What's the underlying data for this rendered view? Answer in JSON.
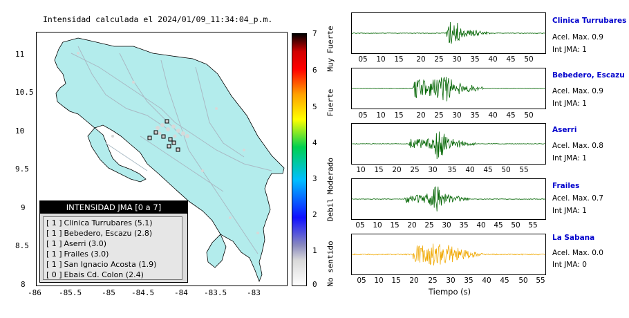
{
  "map": {
    "title": "Intensidad calculada el 2024/01/09_11:34:04_p.m.",
    "x_ticks": [
      "-86",
      "-85.5",
      "-85",
      "-84.5",
      "-84",
      "-83.5",
      "-83"
    ],
    "y_ticks": [
      "11",
      "10.5",
      "10",
      "9.5",
      "9",
      "8.5",
      "8"
    ],
    "land_color": "#b3ecec",
    "legend": {
      "title": "INTENSIDAD JMA [0 a 7]",
      "items": [
        {
          "badge": "[ 1 ]",
          "label": "Clinica Turrubares (5.1)"
        },
        {
          "badge": "[ 1 ]",
          "label": "Bebedero, Escazu (2.8)"
        },
        {
          "badge": "[ 1 ]",
          "label": "Aserri (3.0)"
        },
        {
          "badge": "[ 1 ]",
          "label": "Frailes (3.0)"
        },
        {
          "badge": "[ 1 ]",
          "label": "San Ignacio Acosta (1.9)"
        },
        {
          "badge": "[ 0 ]",
          "label": "Ebais Cd. Colon (2.4)"
        }
      ]
    }
  },
  "colorbar": {
    "numbers": [
      "7",
      "6",
      "5",
      "4",
      "3",
      "2",
      "1",
      "0"
    ],
    "words": [
      "Muy Fuerte",
      "Fuerte",
      "Moderado",
      "Debil",
      "No sentido"
    ]
  },
  "waveforms": {
    "x_label": "Tiempo (s)",
    "stations": [
      {
        "name": "Clinica Turrubares",
        "accel": "Acel. Max. 0.9",
        "jma": "Int JMA: 1",
        "color": "#006400",
        "ticks": [
          "05",
          "10",
          "15",
          "20",
          "25",
          "30",
          "35",
          "40",
          "45",
          "50"
        ]
      },
      {
        "name": "Bebedero, Escazu",
        "accel": "Acel. Max. 0.9",
        "jma": "Int JMA: 1",
        "color": "#006400",
        "ticks": [
          "05",
          "10",
          "15",
          "20",
          "25",
          "30",
          "35",
          "40",
          "45",
          "50"
        ]
      },
      {
        "name": "Aserri",
        "accel": "Acel. Max. 0.8",
        "jma": "Int JMA: 1",
        "color": "#006400",
        "ticks": [
          "10",
          "15",
          "20",
          "25",
          "30",
          "35",
          "40",
          "45",
          "50",
          "55"
        ]
      },
      {
        "name": "Frailes",
        "accel": "Acel. Max. 0.7",
        "jma": "Int JMA: 1",
        "color": "#006400",
        "ticks": [
          "05",
          "10",
          "15",
          "20",
          "25",
          "30",
          "35",
          "40",
          "45",
          "50",
          "55"
        ]
      },
      {
        "name": "La Sabana",
        "accel": "Acel. Max. 0.0",
        "jma": "Int JMA: 0",
        "color": "#f0a800",
        "ticks": [
          "05",
          "10",
          "15",
          "20",
          "25",
          "30",
          "35",
          "40",
          "45",
          "50",
          "55"
        ]
      }
    ]
  }
}
